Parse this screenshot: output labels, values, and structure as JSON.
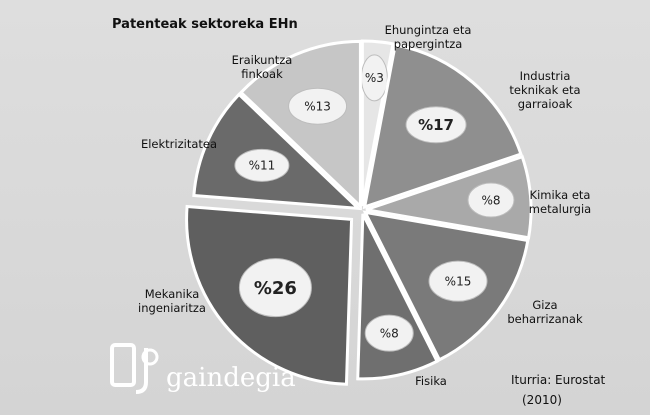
{
  "chart_data": {
    "type": "pie",
    "title": "Patenteak sektoreka EHn",
    "slices": [
      {
        "label_lines": [
          "Ehungintza eta",
          "papergintza"
        ],
        "value": 3,
        "value_label": "%3",
        "color": "#e6e6e6"
      },
      {
        "label_lines": [
          "Industria",
          "teknikak eta",
          "garraioak"
        ],
        "value": 17,
        "value_label": "%17",
        "color": "#8f8f8f"
      },
      {
        "label_lines": [
          "Kimika eta",
          "metalurgia"
        ],
        "value": 8,
        "value_label": "%8",
        "color": "#a9a9a9"
      },
      {
        "label_lines": [
          "Giza",
          "beharrizanak"
        ],
        "value": 15,
        "value_label": "%15",
        "color": "#7a7a7a"
      },
      {
        "label_lines": [
          "Fisika"
        ],
        "value": 8,
        "value_label": "%8",
        "color": "#6f6f6f"
      },
      {
        "label_lines": [
          "Mekanika",
          "ingeniaritza"
        ],
        "value": 26,
        "value_label": "%26",
        "color": "#5f5f5f"
      },
      {
        "label_lines": [
          "Elektrizitatea"
        ],
        "value": 11,
        "value_label": "%11",
        "color": "#6a6a6a"
      },
      {
        "label_lines": [
          "Eraikuntza",
          "finkoak"
        ],
        "value": 13,
        "value_label": "%13",
        "color": "#c6c6c6"
      }
    ],
    "exploded_slice": "Mekanika ingeniaritza"
  },
  "source": {
    "line1": "Iturria: Eurostat",
    "line2": "(2010)"
  },
  "logo": {
    "text": "gaindegia"
  }
}
